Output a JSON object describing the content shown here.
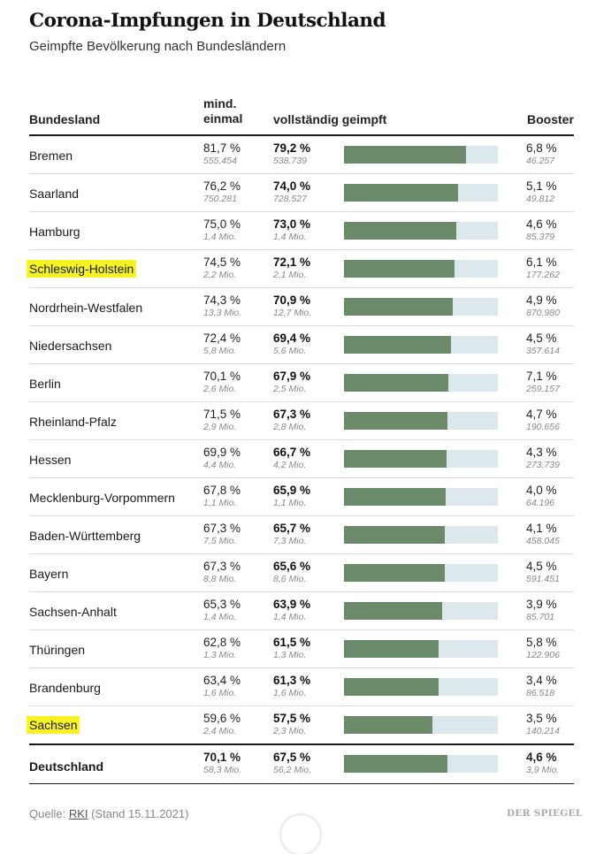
{
  "chart_data": {
    "type": "table",
    "title": "Corona-Impfungen in Deutschland",
    "subtitle": "Geimpfte Bevölkerung nach Bundesländern",
    "columns": {
      "state": "Bundesland",
      "min_once": "mind. einmal",
      "full": "vollständig geimpft",
      "booster": "Booster"
    },
    "bar_range": [
      0,
      100
    ],
    "rows": [
      {
        "name": "Bremen",
        "highlight": false,
        "min_pct": "81,7 %",
        "min_abs": "555.454",
        "full_pct": "79,2 %",
        "full_abs": "538.739",
        "full_value": 79.2,
        "boost_pct": "6,8 %",
        "boost_abs": "46.257"
      },
      {
        "name": "Saarland",
        "highlight": false,
        "min_pct": "76,2 %",
        "min_abs": "750.281",
        "full_pct": "74,0 %",
        "full_abs": "728.527",
        "full_value": 74.0,
        "boost_pct": "5,1 %",
        "boost_abs": "49.812"
      },
      {
        "name": "Hamburg",
        "highlight": false,
        "min_pct": "75,0 %",
        "min_abs": "1,4 Mio.",
        "full_pct": "73,0 %",
        "full_abs": "1,4 Mio.",
        "full_value": 73.0,
        "boost_pct": "4,6 %",
        "boost_abs": "85.379"
      },
      {
        "name": "Schleswig-Holstein",
        "highlight": true,
        "min_pct": "74,5 %",
        "min_abs": "2,2 Mio.",
        "full_pct": "72,1 %",
        "full_abs": "2,1 Mio.",
        "full_value": 72.1,
        "boost_pct": "6,1 %",
        "boost_abs": "177.262"
      },
      {
        "name": "Nordrhein-Westfalen",
        "highlight": false,
        "min_pct": "74,3 %",
        "min_abs": "13,3 Mio.",
        "full_pct": "70,9 %",
        "full_abs": "12,7 Mio.",
        "full_value": 70.9,
        "boost_pct": "4,9 %",
        "boost_abs": "870.980"
      },
      {
        "name": "Niedersachsen",
        "highlight": false,
        "min_pct": "72,4 %",
        "min_abs": "5,8 Mio.",
        "full_pct": "69,4 %",
        "full_abs": "5,6 Mio.",
        "full_value": 69.4,
        "boost_pct": "4,5 %",
        "boost_abs": "357.614"
      },
      {
        "name": "Berlin",
        "highlight": false,
        "min_pct": "70,1 %",
        "min_abs": "2,6 Mio.",
        "full_pct": "67,9 %",
        "full_abs": "2,5 Mio.",
        "full_value": 67.9,
        "boost_pct": "7,1 %",
        "boost_abs": "259.157"
      },
      {
        "name": "Rheinland-Pfalz",
        "highlight": false,
        "min_pct": "71,5 %",
        "min_abs": "2,9 Mio.",
        "full_pct": "67,3 %",
        "full_abs": "2,8 Mio.",
        "full_value": 67.3,
        "boost_pct": "4,7 %",
        "boost_abs": "190.656"
      },
      {
        "name": "Hessen",
        "highlight": false,
        "min_pct": "69,9 %",
        "min_abs": "4,4 Mio.",
        "full_pct": "66,7 %",
        "full_abs": "4,2 Mio.",
        "full_value": 66.7,
        "boost_pct": "4,3 %",
        "boost_abs": "273.739"
      },
      {
        "name": "Mecklenburg-Vorpommern",
        "highlight": false,
        "min_pct": "67,8 %",
        "min_abs": "1,1 Mio.",
        "full_pct": "65,9 %",
        "full_abs": "1,1 Mio.",
        "full_value": 65.9,
        "boost_pct": "4,0 %",
        "boost_abs": "64.196"
      },
      {
        "name": "Baden-Württemberg",
        "highlight": false,
        "min_pct": "67,3 %",
        "min_abs": "7,5 Mio.",
        "full_pct": "65,7 %",
        "full_abs": "7,3 Mio.",
        "full_value": 65.7,
        "boost_pct": "4,1 %",
        "boost_abs": "458.045"
      },
      {
        "name": "Bayern",
        "highlight": false,
        "min_pct": "67,3 %",
        "min_abs": "8,8 Mio.",
        "full_pct": "65,6 %",
        "full_abs": "8,6 Mio.",
        "full_value": 65.6,
        "boost_pct": "4,5 %",
        "boost_abs": "591.451"
      },
      {
        "name": "Sachsen-Anhalt",
        "highlight": false,
        "min_pct": "65,3 %",
        "min_abs": "1,4 Mio.",
        "full_pct": "63,9 %",
        "full_abs": "1,4 Mio.",
        "full_value": 63.9,
        "boost_pct": "3,9 %",
        "boost_abs": "85.701"
      },
      {
        "name": "Thüringen",
        "highlight": false,
        "min_pct": "62,8 %",
        "min_abs": "1,3 Mio.",
        "full_pct": "61,5 %",
        "full_abs": "1,3 Mio.",
        "full_value": 61.5,
        "boost_pct": "5,8 %",
        "boost_abs": "122.906"
      },
      {
        "name": "Brandenburg",
        "highlight": false,
        "min_pct": "63,4 %",
        "min_abs": "1,6 Mio.",
        "full_pct": "61,3 %",
        "full_abs": "1,6 Mio.",
        "full_value": 61.3,
        "boost_pct": "3,4 %",
        "boost_abs": "86.518"
      },
      {
        "name": "Sachsen",
        "highlight": true,
        "min_pct": "59,6 %",
        "min_abs": "2,4 Mio.",
        "full_pct": "57,5 %",
        "full_abs": "2,3 Mio.",
        "full_value": 57.5,
        "boost_pct": "3,5 %",
        "boost_abs": "140.214"
      }
    ],
    "total": {
      "name": "Deutschland",
      "min_pct": "70,1 %",
      "min_abs": "58,3 Mio.",
      "full_pct": "67,5 %",
      "full_abs": "56,2 Mio.",
      "full_value": 67.5,
      "boost_pct": "4,6 %",
      "boost_abs": "3,9 Mio."
    }
  },
  "colors": {
    "bar_fill": "#6b8a6a",
    "bar_track": "#dde8ec",
    "highlight": "#f7f323"
  },
  "footer": {
    "source_prefix": "Quelle: ",
    "source_link": "RKI",
    "source_suffix": " (Stand 15.11.2021)",
    "logo": "DER SPIEGEL"
  }
}
